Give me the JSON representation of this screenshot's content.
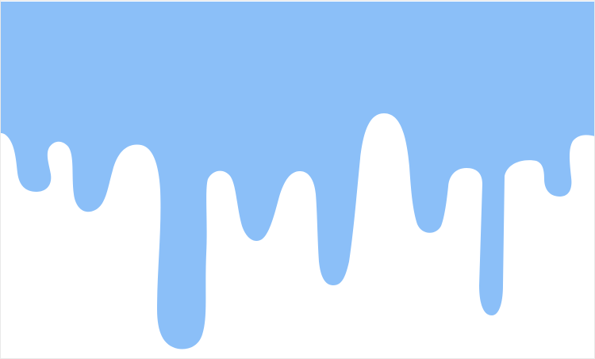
{
  "image": {
    "kind": "illustration",
    "subject": "dripping-paint",
    "colors": {
      "paint": "#8bbff8",
      "background": "#ffffff",
      "frame": "#e9e9e9"
    }
  }
}
